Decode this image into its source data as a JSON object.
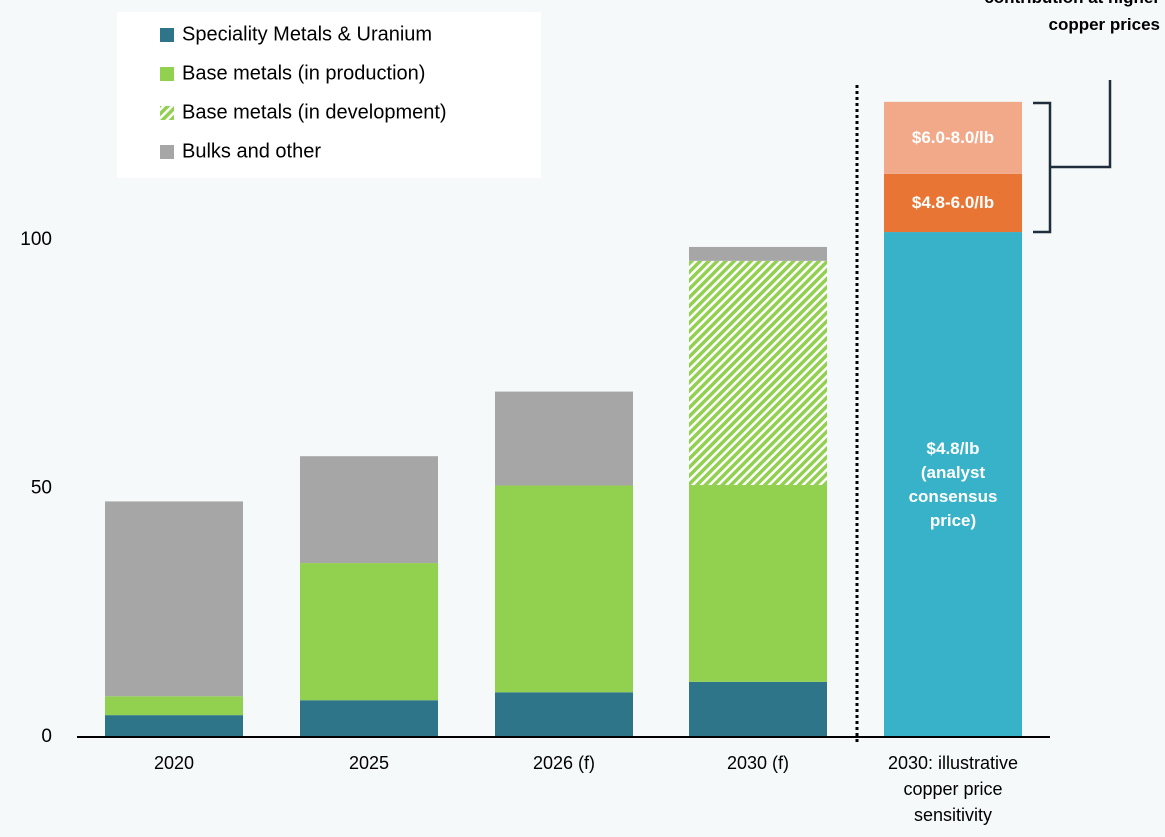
{
  "chart_data": {
    "type": "stacked_bar",
    "categories": [
      "2020",
      "2025",
      "2026 (f)",
      "2030 (f)",
      "2030: illustrative copper price sensitivity"
    ],
    "series": [
      {
        "name": "Speciality Metals & Uranium",
        "color": "#2e758a",
        "legend": true,
        "values": [
          4.4,
          7.4,
          9,
          11.1,
          null
        ]
      },
      {
        "name": "Base metals (in production)",
        "color": "#92d050",
        "legend": true,
        "values": [
          3.8,
          27.6,
          41.6,
          39.6,
          null
        ]
      },
      {
        "name": "Base metals (in development)",
        "color": "#92d050",
        "legend": true,
        "hatch": true,
        "values": [
          null,
          null,
          null,
          45.1,
          null
        ]
      },
      {
        "name": "Bulks and other",
        "color": "#a6a6a6",
        "legend": true,
        "values": [
          39.2,
          21.5,
          18.9,
          2.8,
          null
        ]
      },
      {
        "name": "$4.8/lb (analyst consensus price)",
        "color": "#38b2c8",
        "legend": false,
        "values": [
          null,
          null,
          null,
          null,
          101.6
        ]
      },
      {
        "name": "$4.8-6.0/lb",
        "color": "#e87533",
        "legend": false,
        "values": [
          null,
          null,
          null,
          null,
          11.7
        ]
      },
      {
        "name": "$6.0-8.0/lb",
        "color": "#f2a98a",
        "legend": false,
        "values": [
          null,
          null,
          null,
          null,
          14.5
        ]
      }
    ],
    "ylim": [
      0,
      150
    ],
    "yticks": [
      0,
      50,
      100,
      150
    ],
    "grid": false,
    "legend": "top-left",
    "annotation": [
      "contribution at higher",
      "copper prices"
    ]
  }
}
